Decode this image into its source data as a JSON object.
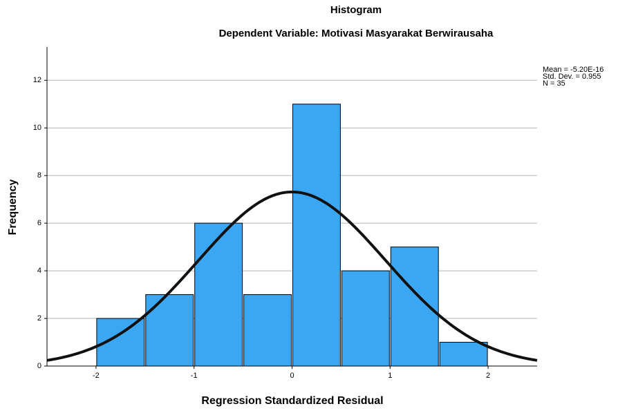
{
  "chart_data": {
    "type": "histogram",
    "title": "Histogram",
    "subtitle": "Dependent Variable: Motivasi Masyarakat Berwirausaha",
    "x_label": "Regression Standardized Residual",
    "y_label": "Frequency",
    "bins": [
      -2,
      -1.5,
      -1,
      -0.5,
      0,
      0.5,
      1,
      1.5,
      2
    ],
    "counts": [
      2,
      3,
      6,
      3,
      11,
      4,
      5,
      1
    ],
    "color": "#3ba6f2",
    "xlim": [
      -2.5,
      2.5
    ],
    "xticks": [
      -2,
      -1,
      0,
      1,
      2
    ],
    "ylim": [
      0,
      13.4
    ],
    "yticks": [
      0,
      2,
      4,
      6,
      8,
      10,
      12
    ],
    "grid": true,
    "normal_curve": {
      "mean": {
        "value": -5.2e-16,
        "label": "Mean = -5.20E-16"
      },
      "std_dev": {
        "value": 0.955,
        "label": "Std. Dev. = 0.955"
      },
      "n": {
        "value": 35,
        "label": "N = 35"
      },
      "color": "#111111"
    }
  }
}
